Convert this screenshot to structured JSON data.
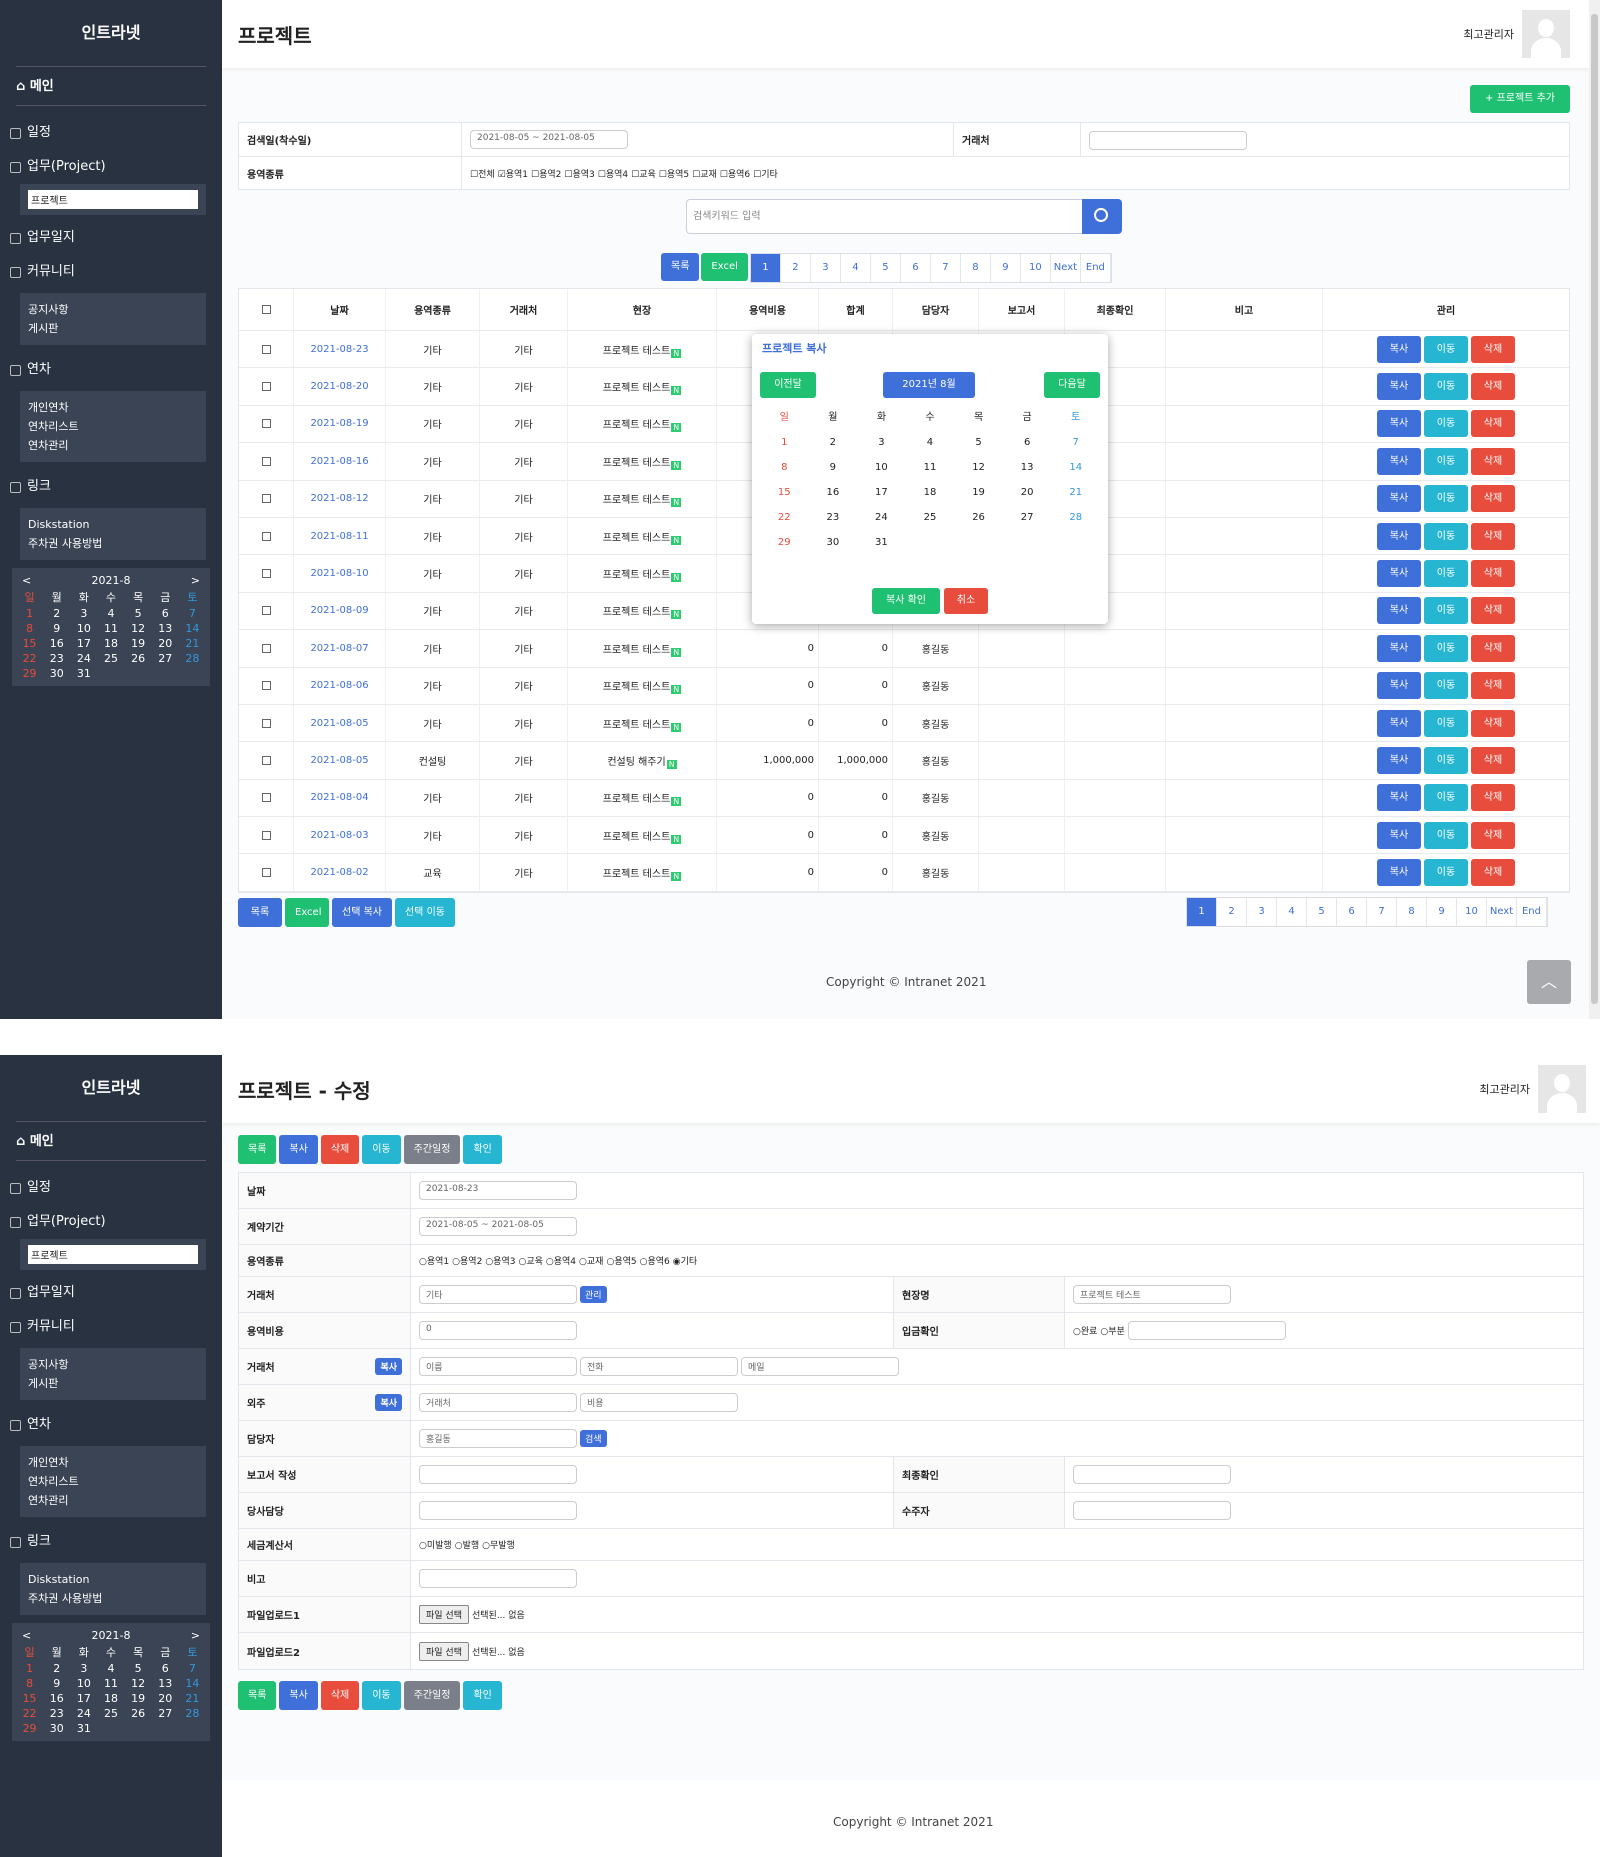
{
  "sidebar": {
    "title": "인트라넷",
    "main": "메인",
    "schedule": "일정",
    "work": "업무(Project)",
    "current": "프로젝트",
    "worklog": "업무일지",
    "community": "커뮤니티",
    "community_sub": [
      "공지사항",
      "게시판"
    ],
    "leave": "연차",
    "leave_sub": [
      "개인연차",
      "연차리스트",
      "연차관리"
    ],
    "link": "링크",
    "link_sub": [
      "Diskstation",
      "주차권 사용방법"
    ],
    "calendar": {
      "prev": "<",
      "next": ">",
      "month": "2021-8",
      "days": [
        "일",
        "월",
        "화",
        "수",
        "목",
        "금",
        "토"
      ],
      "weeks": [
        [
          "1",
          "2",
          "3",
          "4",
          "5",
          "6",
          "7"
        ],
        [
          "8",
          "9",
          "10",
          "11",
          "12",
          "13",
          "14"
        ],
        [
          "15",
          "16",
          "17",
          "18",
          "19",
          "20",
          "21"
        ],
        [
          "22",
          "23",
          "24",
          "25",
          "26",
          "27",
          "28"
        ],
        [
          "29",
          "30",
          "31",
          "",
          "",
          "",
          ""
        ]
      ]
    }
  },
  "list_page": {
    "title": "프로젝트",
    "user": "최고관리자",
    "add_button": "+ 프로젝트 추가",
    "filters": {
      "date_label": "검색일(착수일)",
      "date_value": "2021-08-05 ~ 2021-08-05",
      "client_label": "거래처",
      "type_label": "용역종류",
      "types": [
        {
          "label": "전체",
          "checked": false
        },
        {
          "label": "용역1",
          "checked": true
        },
        {
          "label": "용역2",
          "checked": false
        },
        {
          "label": "용역3",
          "checked": false
        },
        {
          "label": "용역4",
          "checked": false
        },
        {
          "label": "교육",
          "checked": false
        },
        {
          "label": "용역5",
          "checked": false
        },
        {
          "label": "교재",
          "checked": false
        },
        {
          "label": "용역6",
          "checked": false
        },
        {
          "label": "기타",
          "checked": false
        }
      ],
      "search_placeholder": "검색키워드 입력"
    },
    "list_btn": "목록",
    "excel_btn": "Excel",
    "pages": [
      "1",
      "2",
      "3",
      "4",
      "5",
      "6",
      "7",
      "8",
      "9",
      "10",
      "Next",
      "End"
    ],
    "columns": [
      "날짜",
      "용역종류",
      "거래처",
      "현장",
      "용역비용",
      "합계",
      "담당자",
      "보고서",
      "최종확인",
      "비고",
      "관리"
    ],
    "rows": [
      [
        "2021-08-23",
        "기타",
        "기타",
        "프로젝트 테스트",
        "",
        "",
        "",
        "",
        "",
        ""
      ],
      [
        "2021-08-20",
        "기타",
        "기타",
        "프로젝트 테스트",
        "",
        "",
        "",
        "",
        "",
        ""
      ],
      [
        "2021-08-19",
        "기타",
        "기타",
        "프로젝트 테스트",
        "",
        "",
        "",
        "",
        "",
        ""
      ],
      [
        "2021-08-16",
        "기타",
        "기타",
        "프로젝트 테스트",
        "",
        "",
        "",
        "",
        "",
        ""
      ],
      [
        "2021-08-12",
        "기타",
        "기타",
        "프로젝트 테스트",
        "",
        "",
        "",
        "",
        "",
        ""
      ],
      [
        "2021-08-11",
        "기타",
        "기타",
        "프로젝트 테스트",
        "",
        "",
        "",
        "",
        "",
        ""
      ],
      [
        "2021-08-10",
        "기타",
        "기타",
        "프로젝트 테스트",
        "",
        "",
        "",
        "",
        "",
        ""
      ],
      [
        "2021-08-09",
        "기타",
        "기타",
        "프로젝트 테스트",
        "",
        "",
        "",
        "",
        "",
        ""
      ],
      [
        "2021-08-07",
        "기타",
        "기타",
        "프로젝트 테스트",
        "0",
        "0",
        "홍길동",
        "",
        "",
        ""
      ],
      [
        "2021-08-06",
        "기타",
        "기타",
        "프로젝트 테스트",
        "0",
        "0",
        "홍길동",
        "",
        "",
        ""
      ],
      [
        "2021-08-05",
        "기타",
        "기타",
        "프로젝트 테스트",
        "0",
        "0",
        "홍길동",
        "",
        "",
        ""
      ],
      [
        "2021-08-05",
        "컨설팅",
        "기타",
        "컨설팅 해주기",
        "1,000,000",
        "1,000,000",
        "홍길동",
        "",
        "",
        ""
      ],
      [
        "2021-08-04",
        "기타",
        "기타",
        "프로젝트 테스트",
        "0",
        "0",
        "홍길동",
        "",
        "",
        ""
      ],
      [
        "2021-08-03",
        "기타",
        "기타",
        "프로젝트 테스트",
        "0",
        "0",
        "홍길동",
        "",
        "",
        ""
      ],
      [
        "2021-08-02",
        "교육",
        "기타",
        "프로젝트 테스트",
        "0",
        "0",
        "홍길동",
        "",
        "",
        ""
      ]
    ],
    "new_badge": "N",
    "row_actions": {
      "copy": "복사",
      "move": "이동",
      "delete": "삭제"
    },
    "bottom": {
      "list": "목록",
      "excel": "Excel",
      "copy_sel": "선택 복사",
      "move_sel": "선택 이동"
    },
    "popup": {
      "title": "프로젝트 복사",
      "prev": "이전달",
      "month": "2021년 8월",
      "next": "다음달",
      "confirm": "복사 확인",
      "cancel": "취소"
    },
    "copyright": "Copyright © Intranet 2021",
    "top_icon": "chevron-up-icon"
  },
  "edit_page": {
    "title": "프로젝트 - 수정",
    "user": "최고관리자",
    "buttons": [
      "목록",
      "복사",
      "삭제",
      "이동",
      "주간일정",
      "확인"
    ],
    "fields": {
      "date": {
        "label": "날짜",
        "value": "2021-08-23"
      },
      "period": {
        "label": "계약기간",
        "value": "2021-08-05 ~ 2021-08-05"
      },
      "type": {
        "label": "용역종류",
        "options": [
          "용역1",
          "용역2",
          "용역3",
          "교육",
          "용역4",
          "교재",
          "용역5",
          "용역6",
          "기타"
        ],
        "selected": "기타"
      },
      "client": {
        "label": "거래처",
        "placeholder": "기타",
        "button": "관리"
      },
      "site": {
        "label": "현장명",
        "placeholder": "프로젝트 테스트"
      },
      "cost": {
        "label": "용역비용",
        "value": "0"
      },
      "payment": {
        "label": "입금확인",
        "options": [
          "완료",
          "부분"
        ]
      },
      "contact": {
        "label": "거래처",
        "button": "복사",
        "placeholders": [
          "이름",
          "전화",
          "메일"
        ]
      },
      "outsource": {
        "label": "외주",
        "button": "복사",
        "placeholders": [
          "거래처",
          "비용"
        ]
      },
      "manager": {
        "label": "담당자",
        "value": "홍길동",
        "button": "검색"
      },
      "report": {
        "label": "보고서 작성"
      },
      "final": {
        "label": "최종확인"
      },
      "our_manager": {
        "label": "당사담당"
      },
      "orderer": {
        "label": "수주자"
      },
      "tax": {
        "label": "세금계산서",
        "options": [
          "미발행",
          "발행",
          "무발행"
        ]
      },
      "memo": {
        "label": "비고"
      },
      "file1": {
        "label": "파일업로드1",
        "button": "파일 선택",
        "status": "선택된... 없음"
      },
      "file2": {
        "label": "파일업로드2",
        "button": "파일 선택",
        "status": "선택된... 없음"
      }
    },
    "copyright": "Copyright © Intranet 2021"
  }
}
